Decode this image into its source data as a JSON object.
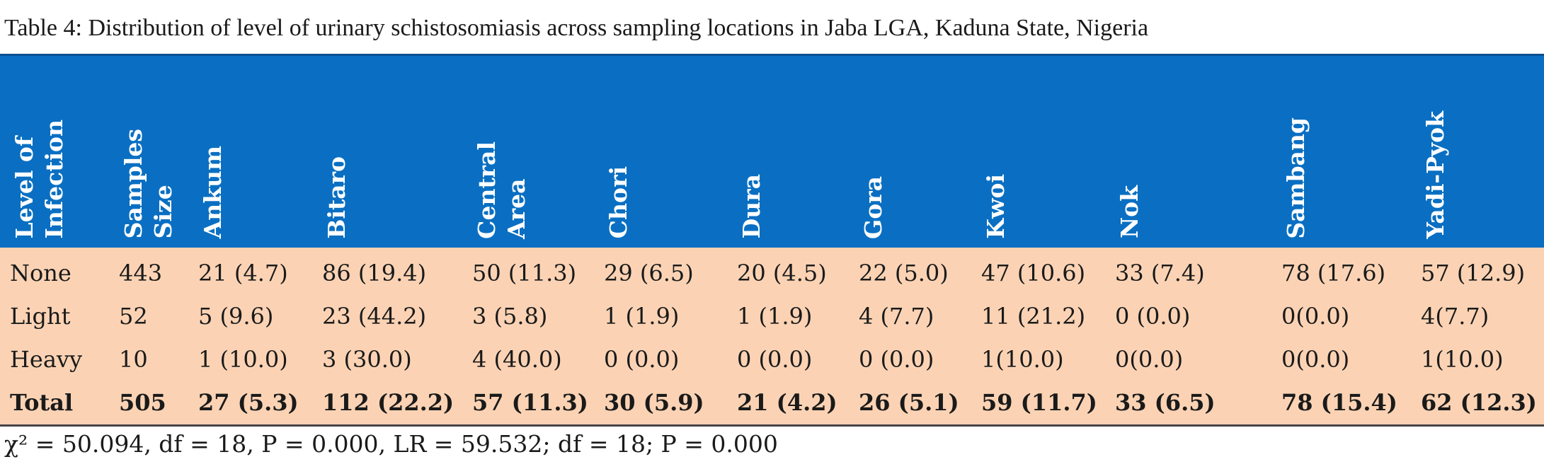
{
  "caption": "Table 4: Distribution of level of urinary schistosomiasis across sampling locations in Jaba LGA, Kaduna State, Nigeria",
  "headers": [
    "Level of\nInfection",
    "Samples\nSize",
    "Ankum",
    "Bitaro",
    "Central\nArea",
    "Chori",
    "Dura",
    "Gora",
    "Kwoi",
    "Nok",
    "Sambang",
    "Yadi-Pyok"
  ],
  "rows": [
    [
      "None",
      "443",
      "21 (4.7)",
      "86 (19.4)",
      "50 (11.3)",
      "29 (6.5)",
      "20 (4.5)",
      "22 (5.0)",
      "47 (10.6)",
      "33 (7.4)",
      "78 (17.6)",
      "57 (12.9)"
    ],
    [
      "Light",
      "52",
      "5 (9.6)",
      "23 (44.2)",
      "3 (5.8)",
      "1 (1.9)",
      "1 (1.9)",
      "4 (7.7)",
      "11 (21.2)",
      "0 (0.0)",
      "0(0.0)",
      "4(7.7)"
    ],
    [
      "Heavy",
      "10",
      "1 (10.0)",
      "3 (30.0)",
      "4 (40.0)",
      "0 (0.0)",
      "0 (0.0)",
      "0 (0.0)",
      "1(10.0)",
      "0(0.0)",
      "0(0.0)",
      "1(10.0)"
    ],
    [
      "Total",
      "505",
      "27 (5.3)",
      "112 (22.2)",
      "57 (11.3)",
      "30 (5.9)",
      "21 (4.2)",
      "26 (5.1)",
      "59 (11.7)",
      "33 (6.5)",
      "78 (15.4)",
      "62 (12.3)"
    ]
  ],
  "footnote": "χ² = 50.094, df = 18, P = 0.000, LR = 59.532; df = 18; P = 0.000"
}
